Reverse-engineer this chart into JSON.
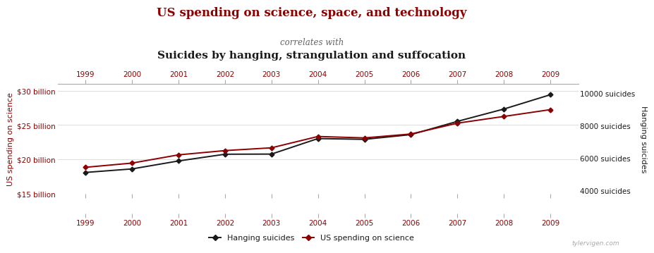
{
  "years": [
    1999,
    2000,
    2001,
    2002,
    2003,
    2004,
    2005,
    2006,
    2007,
    2008,
    2009
  ],
  "hanging_suicides": [
    5427,
    5688,
    6198,
    6462,
    6635,
    7336,
    7248,
    7491,
    8161,
    8578,
    9000
  ],
  "us_spending_billions": [
    18.079,
    18.592,
    19.753,
    20.734,
    20.755,
    23.018,
    22.901,
    23.592,
    25.525,
    27.322,
    29.409
  ],
  "title_line1": "US spending on science, space, and technology",
  "title_line2": "correlates with",
  "title_line3": "Suicides by hanging, strangulation and suffocation",
  "ylabel_left": "US spending on science",
  "ylabel_right": "Hanging suicides",
  "color_red": "#8B0000",
  "color_black": "#1a1a1a",
  "color_gray": "#aaaaaa",
  "bg_color": "#ffffff",
  "ylim_left": [
    15000000000.0,
    31000000000.0
  ],
  "ylim_right": [
    3800,
    10600
  ],
  "yticks_left": [
    15000000000.0,
    20000000000.0,
    25000000000.0,
    30000000000.0
  ],
  "yticks_left_labels": [
    "$15 billion",
    "$20 billion",
    "$25 billion",
    "$30 billion"
  ],
  "yticks_right": [
    4000,
    6000,
    8000,
    10000
  ],
  "yticks_right_labels": [
    "4000 suicides",
    "6000 suicides",
    "8000 suicides",
    "10000 suicides"
  ],
  "legend_label_black": "Hanging suicides",
  "legend_label_red": "US spending on science",
  "watermark": "tylervigen.com",
  "xlim": [
    1998.4,
    2009.6
  ]
}
